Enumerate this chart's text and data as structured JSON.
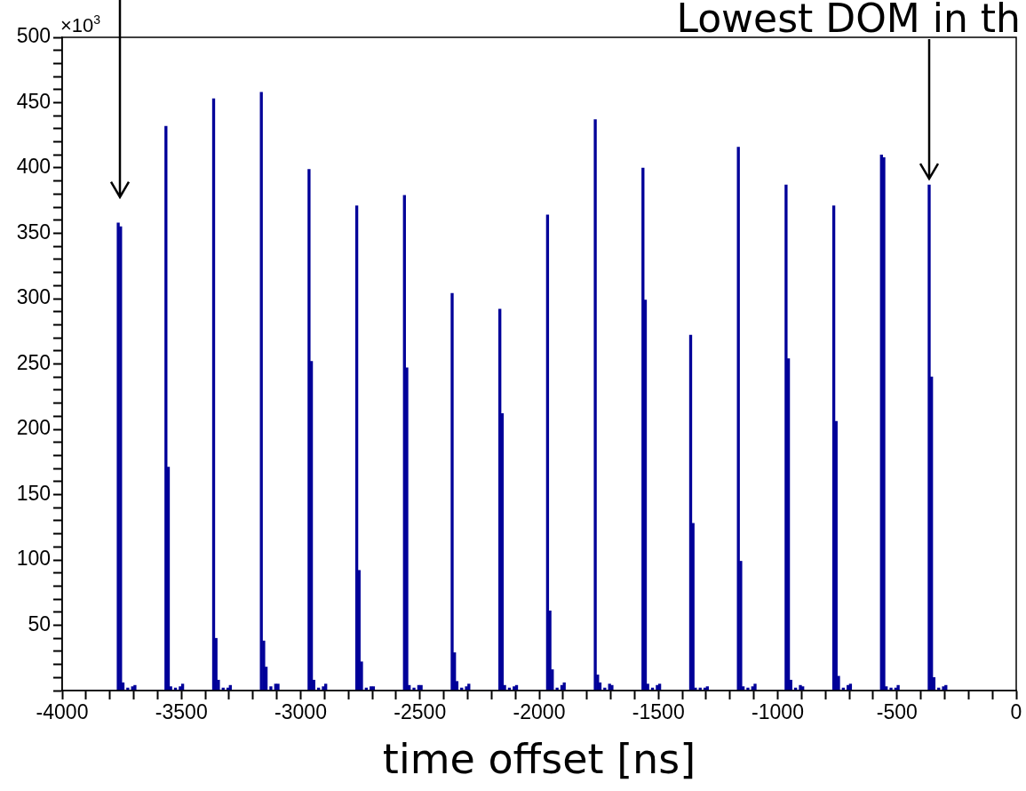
{
  "chart_data": {
    "type": "histogram",
    "xlabel": "time offset [ns]",
    "color": "#000099",
    "annotations": [
      "×10$^{3}$",
      {
        "text": "Lowest DOM in th",
        "x": -365,
        "y": 387
      }
    ],
    "bins": [
      -4000,
      -3770,
      -3760,
      -3750,
      -3740,
      -3730,
      -3720,
      -3710,
      -3700,
      -3690,
      -3570,
      -3560,
      -3550,
      -3540,
      -3530,
      -3520,
      -3510,
      -3500,
      -3490,
      -3370,
      -3360,
      -3350,
      -3340,
      -3330,
      -3320,
      -3310,
      -3300,
      -3290,
      -3170,
      -3160,
      -3150,
      -3140,
      -3130,
      -3120,
      -3110,
      -3100,
      -3090,
      -2970,
      -2960,
      -2950,
      -2940,
      -2930,
      -2920,
      -2910,
      -2900,
      -2890,
      -2770,
      -2760,
      -2750,
      -2740,
      -2730,
      -2720,
      -2710,
      -2700,
      -2690,
      -2570,
      -2560,
      -2550,
      -2540,
      -2530,
      -2520,
      -2510,
      -2500,
      -2490,
      -2370,
      -2360,
      -2350,
      -2340,
      -2330,
      -2320,
      -2310,
      -2300,
      -2290,
      -2170,
      -2160,
      -2150,
      -2140,
      -2130,
      -2120,
      -2110,
      -2100,
      -2090,
      -1970,
      -1960,
      -1950,
      -1940,
      -1930,
      -1920,
      -1910,
      -1900,
      -1890,
      -1770,
      -1760,
      -1750,
      -1740,
      -1730,
      -1720,
      -1710,
      -1700,
      -1690,
      -1570,
      -1560,
      -1550,
      -1540,
      -1530,
      -1520,
      -1510,
      -1500,
      -1490,
      -1370,
      -1360,
      -1350,
      -1340,
      -1330,
      -1320,
      -1310,
      -1300,
      -1290,
      -1170,
      -1160,
      -1150,
      -1140,
      -1130,
      -1120,
      -1110,
      -1100,
      -1090,
      -970,
      -960,
      -950,
      -940,
      -930,
      -920,
      -910,
      -900,
      -890,
      -770,
      -760,
      -750,
      -740,
      -730,
      -720,
      -710,
      -700,
      -690,
      -570,
      -560,
      -550,
      -540,
      -530,
      -520,
      -510,
      -500,
      -490,
      -370,
      -360,
      -350,
      -340,
      -330,
      -320,
      -310,
      -300,
      -290,
      0
    ],
    "values": [
      0,
      358,
      355,
      6,
      0,
      2,
      0,
      3,
      4,
      0,
      432,
      171,
      3,
      0,
      2,
      0,
      3,
      5,
      0,
      453,
      40,
      8,
      0,
      2,
      0,
      2,
      4,
      0,
      458,
      38,
      18,
      0,
      3,
      0,
      5,
      5,
      0,
      399,
      252,
      8,
      0,
      2,
      0,
      3,
      5,
      0,
      371,
      92,
      22,
      0,
      2,
      0,
      3,
      3,
      0,
      379,
      247,
      4,
      0,
      2,
      0,
      4,
      4,
      0,
      304,
      29,
      7,
      0,
      2,
      0,
      3,
      5,
      0,
      292,
      212,
      4,
      0,
      2,
      0,
      3,
      4,
      0,
      364,
      61,
      16,
      0,
      2,
      0,
      4,
      6,
      0,
      437,
      12,
      6,
      0,
      2,
      0,
      5,
      4,
      0,
      400,
      299,
      5,
      0,
      2,
      0,
      4,
      5,
      0,
      272,
      128,
      2,
      0,
      2,
      0,
      2,
      3,
      0,
      416,
      99,
      3,
      0,
      2,
      0,
      3,
      5,
      0,
      387,
      254,
      8,
      0,
      2,
      0,
      4,
      3,
      0,
      371,
      206,
      11,
      0,
      2,
      0,
      4,
      5,
      0,
      410,
      408,
      3,
      0,
      2,
      0,
      2,
      4,
      0,
      387,
      240,
      10,
      0,
      2,
      0,
      3,
      4,
      0
    ],
    "xlim": [
      -4000,
      0
    ],
    "xticks": [
      -4000,
      {
        "value": -3900,
        "label": null
      },
      {
        "value": -3800,
        "label": null
      },
      {
        "value": -3700,
        "label": null
      },
      {
        "value": -3600,
        "label": null
      },
      -3500,
      {
        "value": -3400,
        "label": null
      },
      {
        "value": -3300,
        "label": null
      },
      {
        "value": -3200,
        "label": null
      },
      {
        "value": -3100,
        "label": null
      },
      -3000,
      {
        "value": -2900,
        "label": null
      },
      {
        "value": -2800,
        "label": null
      },
      {
        "value": -2700,
        "label": null
      },
      {
        "value": -2600,
        "label": null
      },
      -2500,
      {
        "value": -2400,
        "label": null
      },
      {
        "value": -2300,
        "label": null
      },
      {
        "value": -2200,
        "label": null
      },
      {
        "value": -2100,
        "label": null
      },
      -2000,
      {
        "value": -1900,
        "label": null
      },
      {
        "value": -1800,
        "label": null
      },
      {
        "value": -1700,
        "label": null
      },
      {
        "value": -1600,
        "label": null
      },
      -1500,
      {
        "value": -1400,
        "label": null
      },
      {
        "value": -1300,
        "label": null
      },
      {
        "value": -1200,
        "label": null
      },
      {
        "value": -1100,
        "label": null
      },
      -1000,
      {
        "value": -900,
        "label": null
      },
      {
        "value": -800,
        "label": null
      },
      {
        "value": -700,
        "label": null
      },
      {
        "value": -600,
        "label": null
      },
      -500,
      {
        "value": -400,
        "label": null
      },
      {
        "value": -300,
        "label": null
      },
      {
        "value": -200,
        "label": null
      },
      {
        "value": -100,
        "label": null
      },
      0
    ],
    "ylim": [
      0,
      500
    ],
    "yticks": [
      {
        "value": 0,
        "label": null
      },
      {
        "value": 10,
        "label": null
      },
      {
        "value": 20,
        "label": null
      },
      {
        "value": 30,
        "label": null
      },
      {
        "value": 40,
        "label": null
      },
      50,
      {
        "value": 60,
        "label": null
      },
      {
        "value": 70,
        "label": null
      },
      {
        "value": 80,
        "label": null
      },
      {
        "value": 90,
        "label": null
      },
      100,
      {
        "value": 110,
        "label": null
      },
      {
        "value": 120,
        "label": null
      },
      {
        "value": 130,
        "label": null
      },
      {
        "value": 140,
        "label": null
      },
      150,
      {
        "value": 160,
        "label": null
      },
      {
        "value": 170,
        "label": null
      },
      {
        "value": 180,
        "label": null
      },
      {
        "value": 190,
        "label": null
      },
      200,
      {
        "value": 210,
        "label": null
      },
      {
        "value": 220,
        "label": null
      },
      {
        "value": 230,
        "label": null
      },
      {
        "value": 240,
        "label": null
      },
      250,
      {
        "value": 260,
        "label": null
      },
      {
        "value": 270,
        "label": null
      },
      {
        "value": 280,
        "label": null
      },
      {
        "value": 290,
        "label": null
      },
      300,
      {
        "value": 310,
        "label": null
      },
      {
        "value": 320,
        "label": null
      },
      {
        "value": 330,
        "label": null
      },
      {
        "value": 340,
        "label": null
      },
      350,
      {
        "value": 360,
        "label": null
      },
      {
        "value": 370,
        "label": null
      },
      {
        "value": 380,
        "label": null
      },
      {
        "value": 390,
        "label": null
      },
      400,
      {
        "value": 410,
        "label": null
      },
      {
        "value": 420,
        "label": null
      },
      {
        "value": 430,
        "label": null
      },
      {
        "value": 440,
        "label": null
      },
      450,
      {
        "value": 460,
        "label": null
      },
      {
        "value": 470,
        "label": null
      },
      {
        "value": 480,
        "label": null
      },
      {
        "value": 490,
        "label": null
      },
      500
    ]
  }
}
